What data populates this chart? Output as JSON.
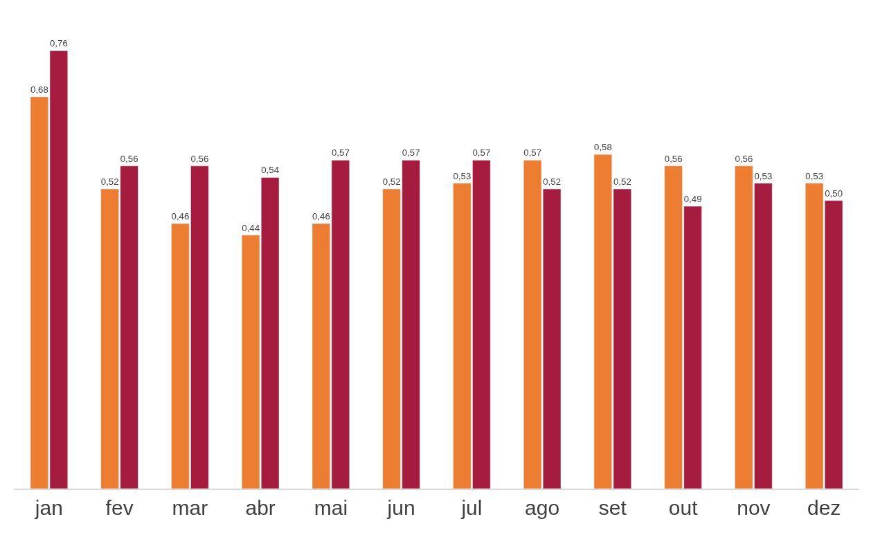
{
  "chart_data": {
    "type": "bar",
    "categories": [
      "jan",
      "fev",
      "mar",
      "abr",
      "mai",
      "jun",
      "jul",
      "ago",
      "set",
      "out",
      "nov",
      "dez"
    ],
    "series": [
      {
        "color": "#ed7d31",
        "values": [
          0.68,
          0.52,
          0.46,
          0.44,
          0.46,
          0.52,
          0.53,
          0.57,
          0.58,
          0.56,
          0.56,
          0.53
        ],
        "value_labels": [
          "0,68",
          "0,52",
          "0,46",
          "0,44",
          "0,46",
          "0,52",
          "0,53",
          "0,57",
          "0,58",
          "0,56",
          "0,56",
          "0,53"
        ]
      },
      {
        "color": "#a51c3f",
        "values": [
          0.76,
          0.56,
          0.56,
          0.54,
          0.57,
          0.57,
          0.57,
          0.52,
          0.52,
          0.49,
          0.53,
          0.5
        ],
        "value_labels": [
          "0,76",
          "0,56",
          "0,56",
          "0,54",
          "0,57",
          "0,57",
          "0,57",
          "0,52",
          "0,52",
          "0,49",
          "0,53",
          "0,50"
        ]
      }
    ]
  }
}
